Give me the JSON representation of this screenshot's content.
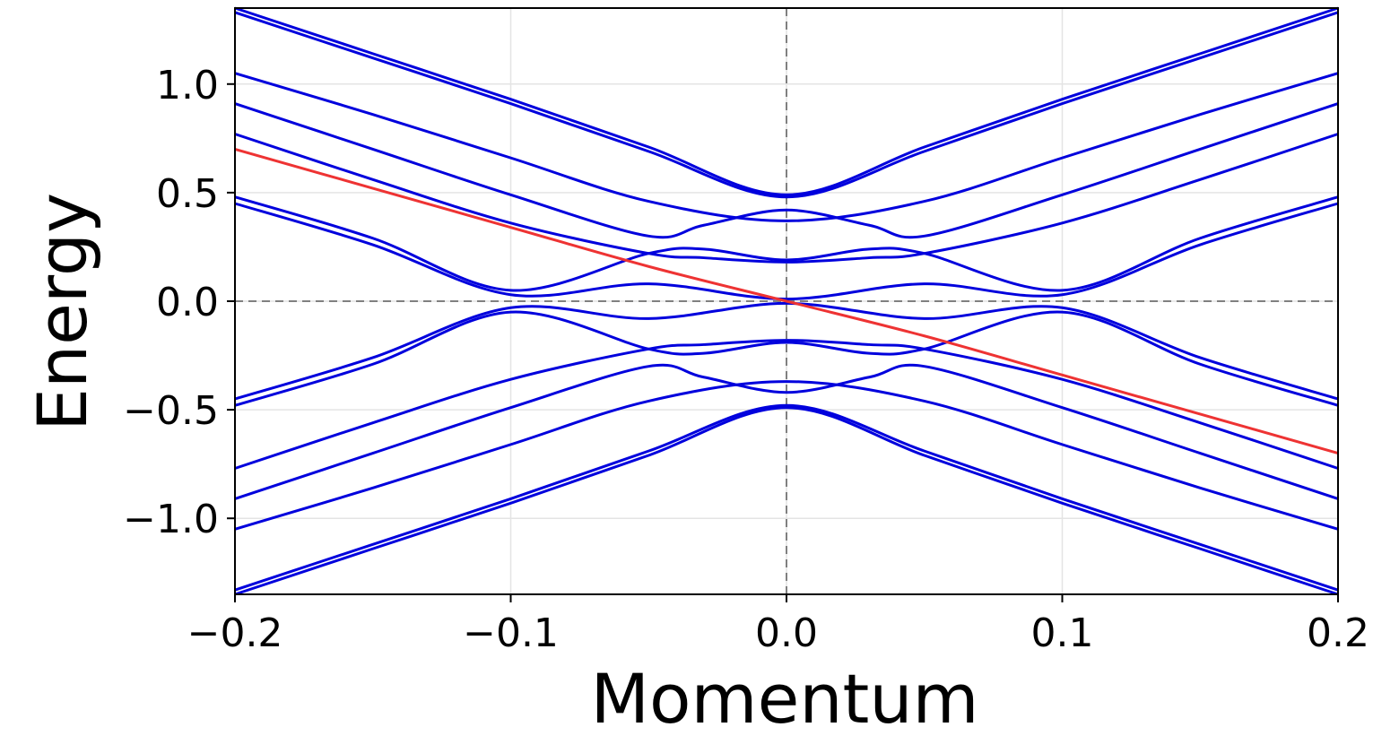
{
  "chart_data": {
    "type": "line",
    "title": "",
    "xlabel": "Momentum",
    "ylabel": "Energy",
    "xlim": [
      -0.2,
      0.2
    ],
    "ylim": [
      -1.35,
      1.35
    ],
    "xticks": [
      -0.2,
      -0.1,
      0.0,
      0.1,
      0.2
    ],
    "xtick_labels": [
      "−0.2",
      "−0.1",
      "0.0",
      "0.1",
      "0.2"
    ],
    "yticks": [
      -1.0,
      -0.5,
      0.0,
      0.5,
      1.0
    ],
    "ytick_labels": [
      "−1.0",
      "−0.5",
      "0.0",
      "0.5",
      "1.0"
    ],
    "grid": true,
    "reference_lines": {
      "x": 0.0,
      "y": 0.0,
      "style": "dashed",
      "color": "#808080"
    },
    "band_color": "#0000dd",
    "highlight_color": "#ee3333",
    "highlight_band": {
      "x": [
        -0.2,
        -0.15,
        -0.1,
        -0.05,
        0.0,
        0.05,
        0.1,
        0.15,
        0.2
      ],
      "y": [
        0.7,
        0.52,
        0.34,
        0.16,
        0.0,
        -0.16,
        -0.34,
        -0.52,
        -0.7
      ]
    },
    "series": [
      {
        "x": [
          -0.2,
          -0.15,
          -0.1,
          -0.05,
          0.0,
          0.05,
          0.1,
          0.15,
          0.2
        ],
        "y": [
          1.35,
          1.14,
          0.93,
          0.71,
          0.49,
          0.71,
          0.93,
          1.14,
          1.35
        ]
      },
      {
        "x": [
          -0.2,
          -0.15,
          -0.1,
          -0.05,
          0.0,
          0.05,
          0.1,
          0.15,
          0.2
        ],
        "y": [
          1.33,
          1.12,
          0.91,
          0.69,
          0.48,
          0.69,
          0.91,
          1.12,
          1.33
        ]
      },
      {
        "x": [
          -0.2,
          -0.15,
          -0.1,
          -0.05,
          0.0,
          0.05,
          0.1,
          0.15,
          0.2
        ],
        "y": [
          1.05,
          0.86,
          0.66,
          0.46,
          0.37,
          0.46,
          0.66,
          0.86,
          1.05
        ]
      },
      {
        "x": [
          -0.2,
          -0.15,
          -0.1,
          -0.05,
          -0.03,
          0.0,
          0.03,
          0.05,
          0.1,
          0.15,
          0.2
        ],
        "y": [
          0.91,
          0.7,
          0.49,
          0.3,
          0.35,
          0.42,
          0.35,
          0.3,
          0.49,
          0.7,
          0.91
        ]
      },
      {
        "x": [
          -0.2,
          -0.15,
          -0.1,
          -0.05,
          -0.03,
          0.0,
          0.03,
          0.05,
          0.1,
          0.15,
          0.2
        ],
        "y": [
          0.77,
          0.56,
          0.36,
          0.22,
          0.2,
          0.18,
          0.2,
          0.22,
          0.36,
          0.56,
          0.77
        ]
      },
      {
        "x": [
          -0.2,
          -0.15,
          -0.1,
          -0.05,
          -0.03,
          0.0,
          0.03,
          0.05,
          0.1,
          0.15,
          0.2
        ],
        "y": [
          0.48,
          0.29,
          0.05,
          0.22,
          0.24,
          0.19,
          0.24,
          0.22,
          0.05,
          0.29,
          0.48
        ]
      },
      {
        "x": [
          -0.2,
          -0.15,
          -0.1,
          -0.05,
          0.0,
          0.05,
          0.1,
          0.15,
          0.2
        ],
        "y": [
          0.45,
          0.26,
          0.03,
          0.08,
          0.01,
          0.08,
          0.03,
          0.26,
          0.45
        ]
      },
      {
        "x": [
          -0.2,
          -0.15,
          -0.1,
          -0.05,
          0.0,
          0.05,
          0.1,
          0.15,
          0.2
        ],
        "y": [
          -0.45,
          -0.26,
          -0.03,
          -0.08,
          -0.01,
          -0.08,
          -0.03,
          -0.26,
          -0.45
        ]
      },
      {
        "x": [
          -0.2,
          -0.15,
          -0.1,
          -0.05,
          -0.03,
          0.0,
          0.03,
          0.05,
          0.1,
          0.15,
          0.2
        ],
        "y": [
          -0.48,
          -0.29,
          -0.05,
          -0.22,
          -0.24,
          -0.19,
          -0.24,
          -0.22,
          -0.05,
          -0.29,
          -0.48
        ]
      },
      {
        "x": [
          -0.2,
          -0.15,
          -0.1,
          -0.05,
          -0.03,
          0.0,
          0.03,
          0.05,
          0.1,
          0.15,
          0.2
        ],
        "y": [
          -0.77,
          -0.56,
          -0.36,
          -0.22,
          -0.2,
          -0.18,
          -0.2,
          -0.22,
          -0.36,
          -0.56,
          -0.77
        ]
      },
      {
        "x": [
          -0.2,
          -0.15,
          -0.1,
          -0.05,
          -0.03,
          0.0,
          0.03,
          0.05,
          0.1,
          0.15,
          0.2
        ],
        "y": [
          -0.91,
          -0.7,
          -0.49,
          -0.3,
          -0.35,
          -0.42,
          -0.35,
          -0.3,
          -0.49,
          -0.7,
          -0.91
        ]
      },
      {
        "x": [
          -0.2,
          -0.15,
          -0.1,
          -0.05,
          0.0,
          0.05,
          0.1,
          0.15,
          0.2
        ],
        "y": [
          -1.05,
          -0.86,
          -0.66,
          -0.46,
          -0.37,
          -0.46,
          -0.66,
          -0.86,
          -1.05
        ]
      },
      {
        "x": [
          -0.2,
          -0.15,
          -0.1,
          -0.05,
          0.0,
          0.05,
          0.1,
          0.15,
          0.2
        ],
        "y": [
          -1.33,
          -1.12,
          -0.91,
          -0.69,
          -0.48,
          -0.69,
          -0.91,
          -1.12,
          -1.33
        ]
      },
      {
        "x": [
          -0.2,
          -0.15,
          -0.1,
          -0.05,
          0.0,
          0.05,
          0.1,
          0.15,
          0.2
        ],
        "y": [
          -1.35,
          -1.14,
          -0.93,
          -0.71,
          -0.49,
          -0.71,
          -0.93,
          -1.14,
          -1.35
        ]
      }
    ]
  }
}
